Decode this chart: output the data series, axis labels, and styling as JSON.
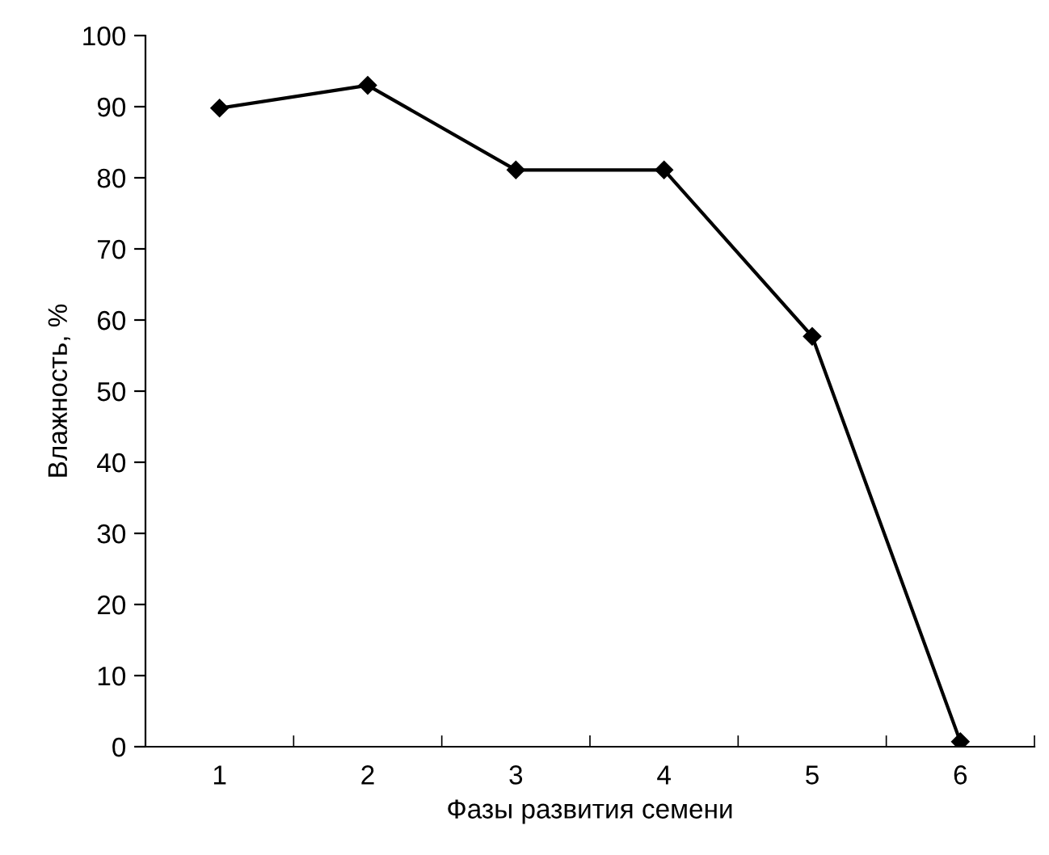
{
  "chart_data": {
    "type": "line",
    "xlabel": "Фазы развития семени",
    "ylabel": "Влажность, %",
    "categories": [
      "1",
      "2",
      "3",
      "4",
      "5",
      "6"
    ],
    "series": [
      {
        "color": "#000000",
        "values": [
          89.8,
          93.0,
          81.1,
          81.1,
          57.7,
          0.7
        ]
      }
    ],
    "ylim": [
      0,
      100
    ],
    "yticks": [
      0,
      10,
      20,
      30,
      40,
      50,
      60,
      70,
      80,
      90,
      100
    ],
    "grid": false,
    "legend": false,
    "marker": "diamond",
    "line_style": "solid"
  }
}
